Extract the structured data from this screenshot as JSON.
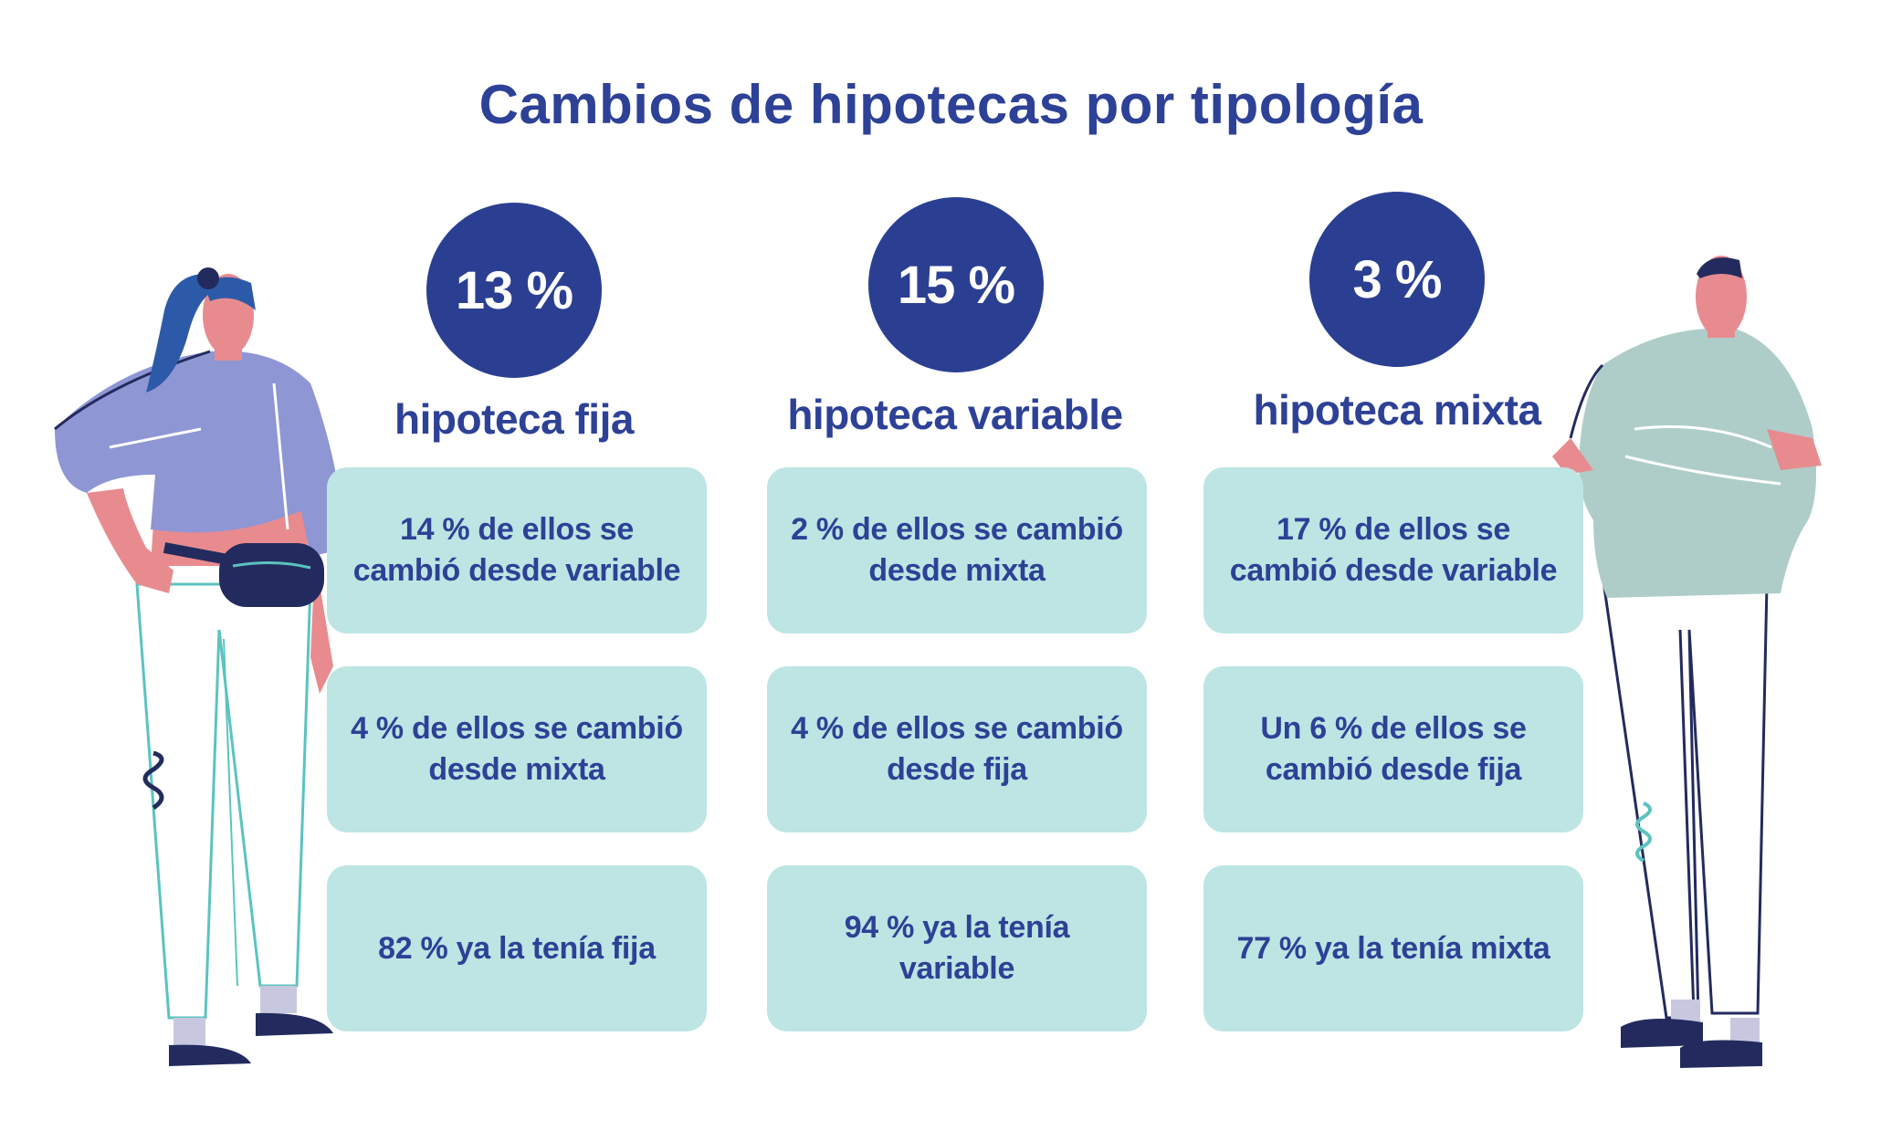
{
  "title": "Cambios de hipotecas por tipología",
  "columns": [
    {
      "percent": "13 %",
      "label": "hipoteca fija",
      "cards": [
        "14 % de ellos se cambió desde variable",
        "4 % de ellos se cambió desde mixta",
        "82 % ya la tenía fija"
      ]
    },
    {
      "percent": "15 %",
      "label": "hipoteca variable",
      "cards": [
        "2 % de ellos se cambió desde mixta",
        "4 % de ellos se cambió desde fija",
        "94 % ya la tenía variable"
      ]
    },
    {
      "percent": "3 %",
      "label": "hipoteca mixta",
      "cards": [
        "17 % de ellos se cambió desde variable",
        "Un 6 % de ellos se cambió desde fija",
        "77 % ya la tenía mixta"
      ]
    }
  ],
  "colors": {
    "primary": "#2b3f92",
    "card_bg": "#bde5e3",
    "background": "#ffffff"
  },
  "illustrations": [
    "woman-with-fanny-pack",
    "man-arms-crossed"
  ]
}
